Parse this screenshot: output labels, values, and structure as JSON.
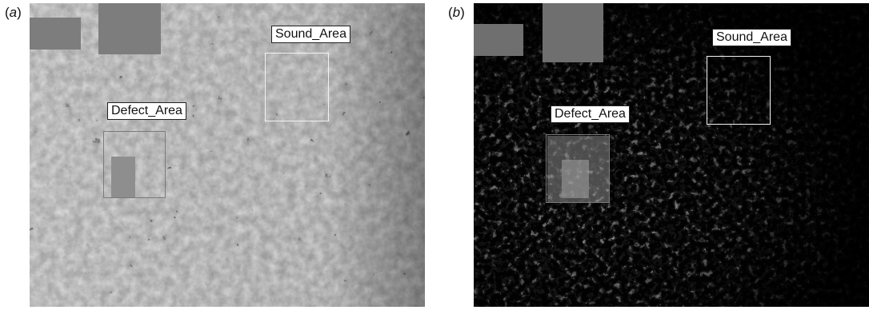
{
  "figure": {
    "panels": [
      {
        "letter": "a",
        "tone": "grayscale micrograph",
        "labels": {
          "sound": "Sound_Area",
          "defect": "Defect_Area"
        }
      },
      {
        "letter": "b",
        "tone": "thresholded micrograph",
        "labels": {
          "sound": "Sound_Area",
          "defect": "Defect_Area"
        }
      }
    ],
    "colors": {
      "grain_light": "#b9b9b9",
      "pore_dark": "#1e1e1e",
      "threshold_bg": "#050505",
      "threshold_speck": "#cfcfcf",
      "roi_outline": "#f2f2f2"
    }
  }
}
